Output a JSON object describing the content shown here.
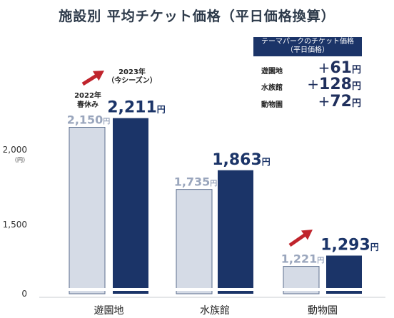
{
  "title": "施設別 平均チケット価格（平日価格換算）",
  "legend": {
    "line1": "テーマパークのチケット価格",
    "line2": "（平日価格）"
  },
  "diffs": [
    {
      "name": "遊園地",
      "prefix": "+",
      "value": "61",
      "unit": "円"
    },
    {
      "name": "水族館",
      "prefix": "+",
      "value": "128",
      "unit": "円"
    },
    {
      "name": "動物園",
      "prefix": "+",
      "value": "72",
      "unit": "円"
    }
  ],
  "series_labels": {
    "prev": [
      "2022年",
      "春休み"
    ],
    "curr": [
      "2023年",
      "（今シーズン）"
    ]
  },
  "colors": {
    "prev_fill": "#d5dbe6",
    "prev_stroke": "#5d6f8f",
    "curr_fill": "#1b3468",
    "prev_text": "#9aa6bd",
    "curr_text": "#1b3468",
    "arrow": "#c0242c"
  },
  "chart_data": {
    "type": "bar",
    "categories": [
      "遊園地",
      "水族館",
      "動物園"
    ],
    "series": [
      {
        "values": [
          2150,
          1735,
          1221
        ],
        "labels": [
          "2,150",
          "1,735",
          "1,221"
        ]
      },
      {
        "values": [
          2211,
          1863,
          1293
        ],
        "labels": [
          "2,211",
          "1,863",
          "1,293"
        ]
      }
    ],
    "value_unit": "円",
    "y_ticks": [
      {
        "value": 0,
        "label": "0"
      },
      {
        "value": 1500,
        "label": "1,500"
      },
      {
        "value": 2000,
        "label": "2,000"
      }
    ],
    "y_unit_label": "（円）",
    "axis_break": true,
    "legend_position": "top-right"
  }
}
